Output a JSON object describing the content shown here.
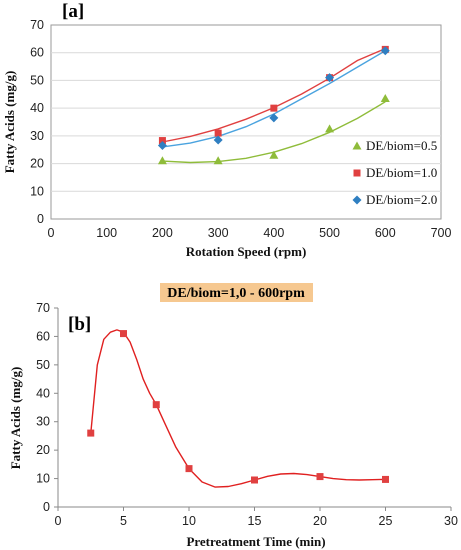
{
  "chart_data": [
    {
      "type": "scatter",
      "panel_label": "[a]",
      "xlabel": "Rotation Speed (rpm)",
      "ylabel": "Fatty Acids (mg/g)",
      "xlim": [
        0,
        700
      ],
      "ylim": [
        0,
        70
      ],
      "xticks": [
        "0",
        "100",
        "200",
        "300",
        "400",
        "500",
        "600",
        "700"
      ],
      "yticks": [
        "0",
        "10",
        "20",
        "30",
        "40",
        "50",
        "60",
        "70"
      ],
      "grid": "horizontal",
      "legend_position": "right",
      "trendline": "polynomial",
      "series": [
        {
          "name": "DE/biom=0.5",
          "marker": "triangle",
          "color": "#8fbc3a",
          "line_color": "#8fbc3a",
          "x": [
            200,
            300,
            400,
            500,
            600
          ],
          "y": [
            21,
            21,
            23,
            32.5,
            43.5
          ],
          "curve_x": [
            200,
            250,
            300,
            350,
            400,
            450,
            500,
            550,
            600
          ],
          "curve_y": [
            20.9,
            20.4,
            20.7,
            21.9,
            24.1,
            27.2,
            31.3,
            36.3,
            42.3
          ]
        },
        {
          "name": "DE/biom=1.0",
          "marker": "square",
          "color": "#e04040",
          "line_color": "#e04040",
          "x": [
            200,
            300,
            400,
            500,
            600
          ],
          "y": [
            28.3,
            31,
            40,
            51,
            61.2
          ],
          "curve_x": [
            200,
            250,
            300,
            350,
            400,
            450,
            500,
            550,
            600
          ],
          "curve_y": [
            27.8,
            29.8,
            32.5,
            36.0,
            40.2,
            45.1,
            50.8,
            57.2,
            61.5
          ]
        },
        {
          "name": "DE/biom=2.0",
          "marker": "diamond",
          "color": "#2f7fc1",
          "line_color": "#4aa3df",
          "x": [
            200,
            300,
            400,
            500,
            600
          ],
          "y": [
            26.5,
            28.5,
            36.5,
            51,
            60.7
          ],
          "curve_x": [
            200,
            250,
            300,
            350,
            400,
            450,
            500,
            550,
            600
          ],
          "curve_y": [
            26.0,
            27.4,
            29.8,
            33.3,
            37.9,
            43.4,
            48.9,
            54.8,
            60.7
          ]
        }
      ]
    },
    {
      "type": "scatter",
      "panel_label": "[b]",
      "banner": "DE/biom=1,0 - 600rpm",
      "xlabel": "Pretreatment Time (min)",
      "ylabel": "Fatty Acids (mg/g)",
      "xlim": [
        0,
        30
      ],
      "ylim": [
        0,
        70
      ],
      "xticks": [
        "0",
        "5",
        "10",
        "15",
        "20",
        "25",
        "30"
      ],
      "yticks": [
        "0",
        "10",
        "20",
        "30",
        "40",
        "50",
        "60",
        "70"
      ],
      "grid": "none",
      "colors": {
        "marker": "#e04040",
        "line": "#e02020",
        "banner_bg": "#f6c890"
      },
      "series": [
        {
          "marker": "square",
          "x": [
            2.5,
            5,
            7.5,
            10,
            15,
            20,
            25
          ],
          "y": [
            26,
            61,
            36,
            13.5,
            9.5,
            10.7,
            9.7
          ]
        }
      ],
      "smooth_curve": {
        "x": [
          2.5,
          3,
          3.5,
          4,
          4.5,
          5,
          5.5,
          6,
          6.5,
          7,
          7.5,
          8,
          9,
          10,
          11,
          12,
          13,
          14,
          15,
          16,
          17,
          18,
          19,
          20,
          21,
          22,
          23,
          24,
          25
        ],
        "y": [
          26,
          50,
          59,
          61.5,
          62.3,
          61.5,
          58,
          52,
          45,
          40,
          36,
          31,
          21,
          13.5,
          8.8,
          7,
          7.2,
          8.2,
          9.5,
          10.8,
          11.6,
          11.8,
          11.4,
          10.7,
          10,
          9.6,
          9.5,
          9.6,
          9.7
        ]
      }
    }
  ]
}
